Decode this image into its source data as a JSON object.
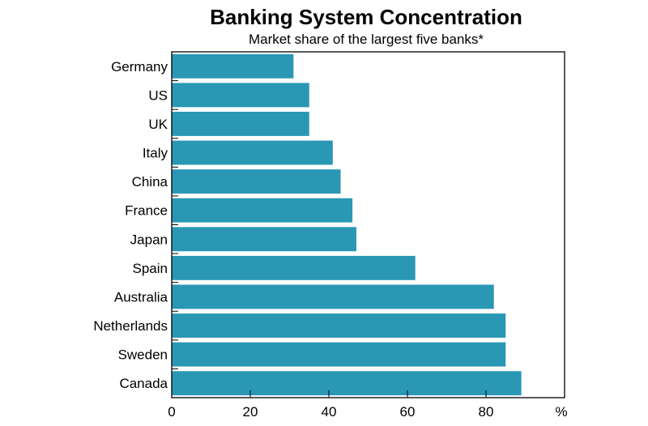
{
  "chart_data": {
    "type": "bar",
    "orientation": "horizontal",
    "title": "Banking System Concentration",
    "subtitle": "Market share of the largest five banks*",
    "unit": "%",
    "categories": [
      "Germany",
      "US",
      "UK",
      "Italy",
      "China",
      "France",
      "Japan",
      "Spain",
      "Australia",
      "Netherlands",
      "Sweden",
      "Canada"
    ],
    "values": [
      31,
      35,
      35,
      41,
      43,
      46,
      47,
      62,
      82,
      85,
      85,
      89
    ],
    "xlim": [
      0,
      100
    ],
    "xticks": [
      0,
      20,
      40,
      60,
      80
    ],
    "bar_color": "#2a98b4",
    "grid": false,
    "legend": "none"
  }
}
